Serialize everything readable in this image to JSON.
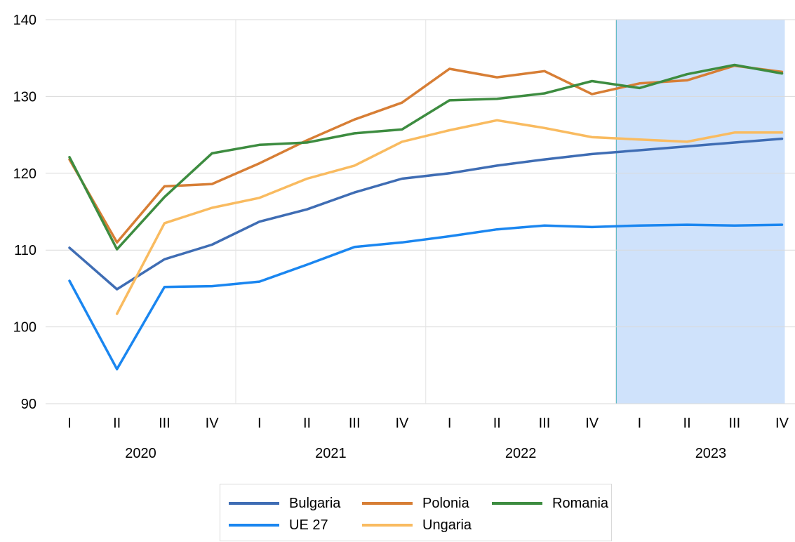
{
  "chart_data": {
    "type": "line",
    "x": [
      "2020-I",
      "2020-II",
      "2020-III",
      "2020-IV",
      "2021-I",
      "2021-II",
      "2021-III",
      "2021-IV",
      "2022-I",
      "2022-II",
      "2022-III",
      "2022-IV",
      "2023-I",
      "2023-II",
      "2023-III",
      "2023-IV"
    ],
    "quarter_labels": [
      "I",
      "II",
      "III",
      "IV",
      "I",
      "II",
      "III",
      "IV",
      "I",
      "II",
      "III",
      "IV",
      "I",
      "II",
      "III",
      "IV"
    ],
    "years": [
      "2020",
      "2021",
      "2022",
      "2023"
    ],
    "ylim": [
      90,
      140
    ],
    "yticks": [
      "90",
      "100",
      "110",
      "120",
      "130",
      "140"
    ],
    "grid": true,
    "legend_position": "bottom",
    "highlight": {
      "from": "2023-I",
      "to": "2023-IV",
      "color": "#cfe2fb"
    },
    "series": [
      {
        "name": "Bulgaria",
        "color": "#3f6db4",
        "values": [
          110.3,
          104.9,
          108.8,
          110.7,
          113.7,
          115.3,
          117.5,
          119.3,
          120.0,
          121.0,
          121.8,
          122.5,
          123.0,
          123.5,
          124.0,
          124.5
        ]
      },
      {
        "name": "Polonia",
        "color": "#d77e35",
        "values": [
          121.8,
          111.0,
          118.3,
          118.6,
          121.3,
          124.3,
          127.0,
          129.2,
          133.6,
          132.5,
          133.3,
          130.3,
          131.7,
          132.1,
          134.0,
          133.2
        ]
      },
      {
        "name": "Romania",
        "color": "#3d8c40",
        "values": [
          122.1,
          110.1,
          116.9,
          122.6,
          123.7,
          124.0,
          125.2,
          125.7,
          129.5,
          129.7,
          130.4,
          132.0,
          131.1,
          132.9,
          134.1,
          133.0
        ]
      },
      {
        "name": "UE 27",
        "color": "#1a86f0",
        "values": [
          106.0,
          94.5,
          105.2,
          105.3,
          105.9,
          108.1,
          110.4,
          111.0,
          111.8,
          112.7,
          113.2,
          113.0,
          113.2,
          113.3,
          113.2,
          113.3
        ]
      },
      {
        "name": "Ungaria",
        "color": "#f9bb60",
        "values": [
          null,
          101.7,
          113.5,
          115.5,
          116.8,
          119.3,
          121.0,
          124.1,
          125.6,
          126.9,
          125.9,
          124.7,
          124.4,
          124.1,
          125.3,
          125.3
        ]
      }
    ]
  }
}
